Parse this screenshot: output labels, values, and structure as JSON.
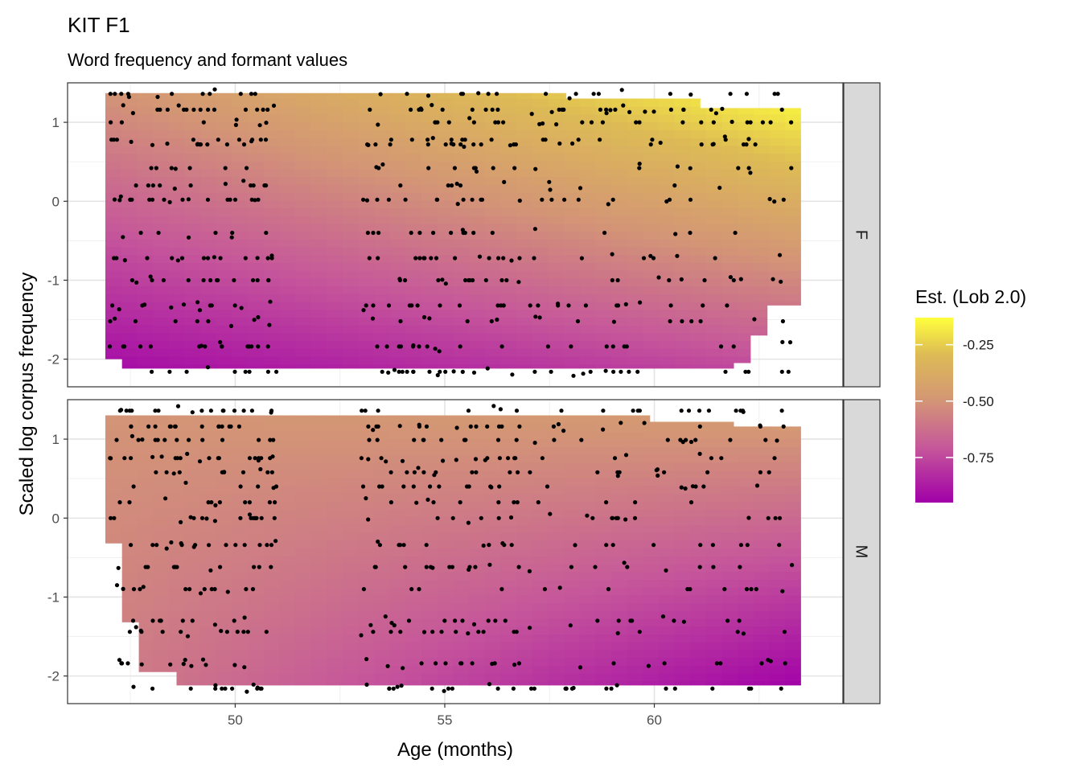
{
  "chart_data": {
    "type": "heatmap",
    "title": "KIT F1",
    "subtitle": "Word frequency and formant values",
    "xlabel": "Age (months)",
    "ylabel": "Scaled log corpus frequency",
    "xlim": [
      46.0,
      64.5
    ],
    "ylim": [
      -2.35,
      1.5
    ],
    "x_ticks": [
      50,
      55,
      60
    ],
    "y_ticks": [
      1,
      0,
      -1,
      -2
    ],
    "x_tick_labels": [
      "50",
      "55",
      "60"
    ],
    "y_tick_labels": [
      "1",
      "0",
      "-1",
      "-2"
    ],
    "grid": true,
    "legend": {
      "title": "Est. (Lob 2.0)",
      "position": "right",
      "ticks": [
        -0.25,
        -0.5,
        -0.75
      ],
      "tick_labels": [
        "-0.25",
        "-0.50",
        "-0.75"
      ],
      "range": [
        -0.95,
        -0.13
      ],
      "colors": [
        "#a100a8",
        "#cf6f87",
        "#d4a860",
        "#ffff3c"
      ]
    },
    "points_series": "black points mark observed (age, frequency) tokens",
    "panels": [
      {
        "strip_label": "F",
        "z_corners": {
          "x_min_y_max": -0.5,
          "x_max_y_max": -0.13,
          "x_min_y_min": -0.92,
          "x_max_y_min": -0.74
        },
        "x_rows": [
          0.98,
          0.66,
          0.49,
          0.28,
          -0.04,
          -0.28,
          -0.57,
          -0.83,
          -1.18,
          -1.5,
          -1.65,
          -1.83
        ],
        "y_rows": [
          1.36,
          1.16,
          1.0,
          0.78,
          0.72,
          0.42,
          0.2,
          0.02,
          -0.4,
          -0.72,
          -1.0,
          -1.32,
          -1.52,
          -1.84,
          -2.16
        ],
        "hull": [
          [
            46.9,
            1.37
          ],
          [
            57.9,
            1.37
          ],
          [
            57.9,
            1.3
          ],
          [
            61.1,
            1.3
          ],
          [
            61.1,
            1.18
          ],
          [
            63.5,
            1.18
          ],
          [
            63.5,
            -1.32
          ],
          [
            62.7,
            -1.32
          ],
          [
            62.7,
            -1.7
          ],
          [
            62.3,
            -1.7
          ],
          [
            62.3,
            -2.05
          ],
          [
            61.9,
            -2.05
          ],
          [
            61.9,
            -2.12
          ],
          [
            47.3,
            -2.12
          ],
          [
            47.3,
            -2.0
          ],
          [
            46.9,
            -2.0
          ]
        ]
      },
      {
        "strip_label": "M",
        "z_corners": {
          "x_min_y_max": -0.5,
          "x_max_y_max": -0.45,
          "x_min_y_min": -0.58,
          "x_max_y_min": -0.95
        },
        "x_rows": [
          0.99,
          0.76,
          0.51,
          0.23,
          -0.02,
          -0.24,
          -0.54,
          -0.86,
          -1.19,
          -1.54,
          -1.76,
          -1.98
        ],
        "y_rows": [
          1.36,
          1.16,
          0.99,
          0.76,
          0.58,
          0.4,
          0.2,
          0.0,
          -0.34,
          -0.62,
          -0.9,
          -1.3,
          -1.44,
          -1.84,
          -2.16
        ],
        "hull": [
          [
            46.9,
            1.3
          ],
          [
            59.9,
            1.3
          ],
          [
            59.9,
            1.22
          ],
          [
            61.9,
            1.22
          ],
          [
            61.9,
            1.16
          ],
          [
            63.5,
            1.16
          ],
          [
            63.5,
            -2.12
          ],
          [
            48.6,
            -2.12
          ],
          [
            48.6,
            -1.95
          ],
          [
            47.7,
            -1.95
          ],
          [
            47.7,
            -1.32
          ],
          [
            47.3,
            -1.32
          ],
          [
            47.3,
            -0.32
          ],
          [
            46.9,
            -0.32
          ]
        ]
      }
    ]
  }
}
